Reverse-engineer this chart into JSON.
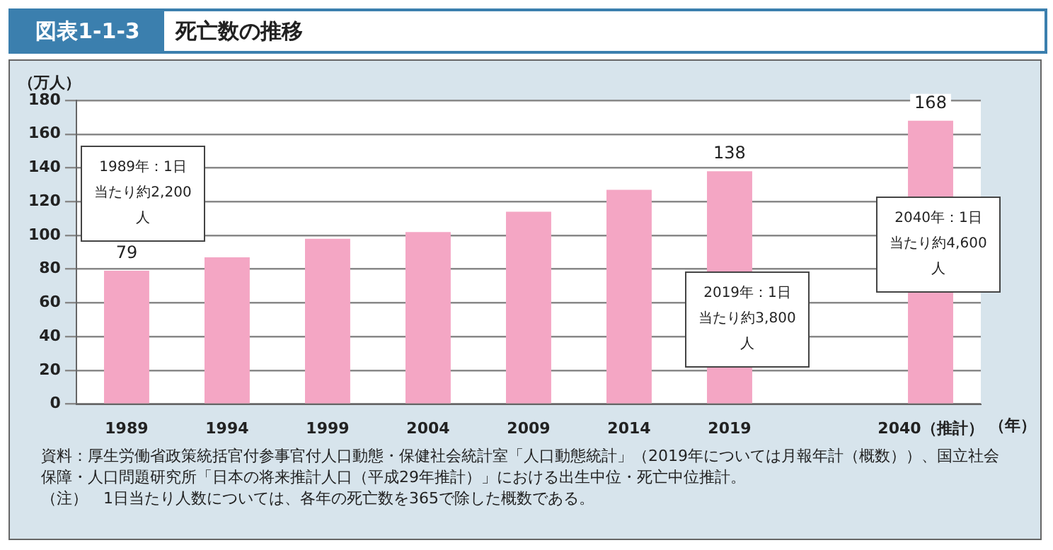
{
  "chart_data": {
    "type": "bar",
    "title": "死亡数の推移",
    "subtitle": "図表1-1-3",
    "ylabel": "（万人）",
    "xlabel": "（年）",
    "categories": [
      "1989",
      "1994",
      "1999",
      "2004",
      "2009",
      "2014",
      "2019",
      null,
      "2040（推計）"
    ],
    "values": [
      79,
      87,
      98,
      102,
      114,
      127,
      138,
      null,
      168
    ],
    "value_labels": [
      "79",
      null,
      null,
      null,
      null,
      null,
      "138",
      null,
      "168"
    ],
    "color": "#f4a6c4",
    "ylim": [
      0,
      180
    ],
    "yticks": [
      0,
      20,
      40,
      60,
      80,
      100,
      120,
      140,
      160,
      180
    ],
    "grid": "y",
    "annotations": [
      "1989年：1日当たり約2,200人",
      "2019年：1日当たり約3,800人",
      "2040年：1日当たり約4,600人",
      "資料：厚生労働省政策統括官付参事官付人口動態・保健社会統計室「人口動態統計」（2019年については月報年計（概数））、国立社会保障・人口問題研究所「日本の将来推計人口（平成29年推計）」における出生中位・死亡中位推計。",
      "（注）　1日当たり人数については、各年の死亡数を365で除した概数である。"
    ]
  }
}
